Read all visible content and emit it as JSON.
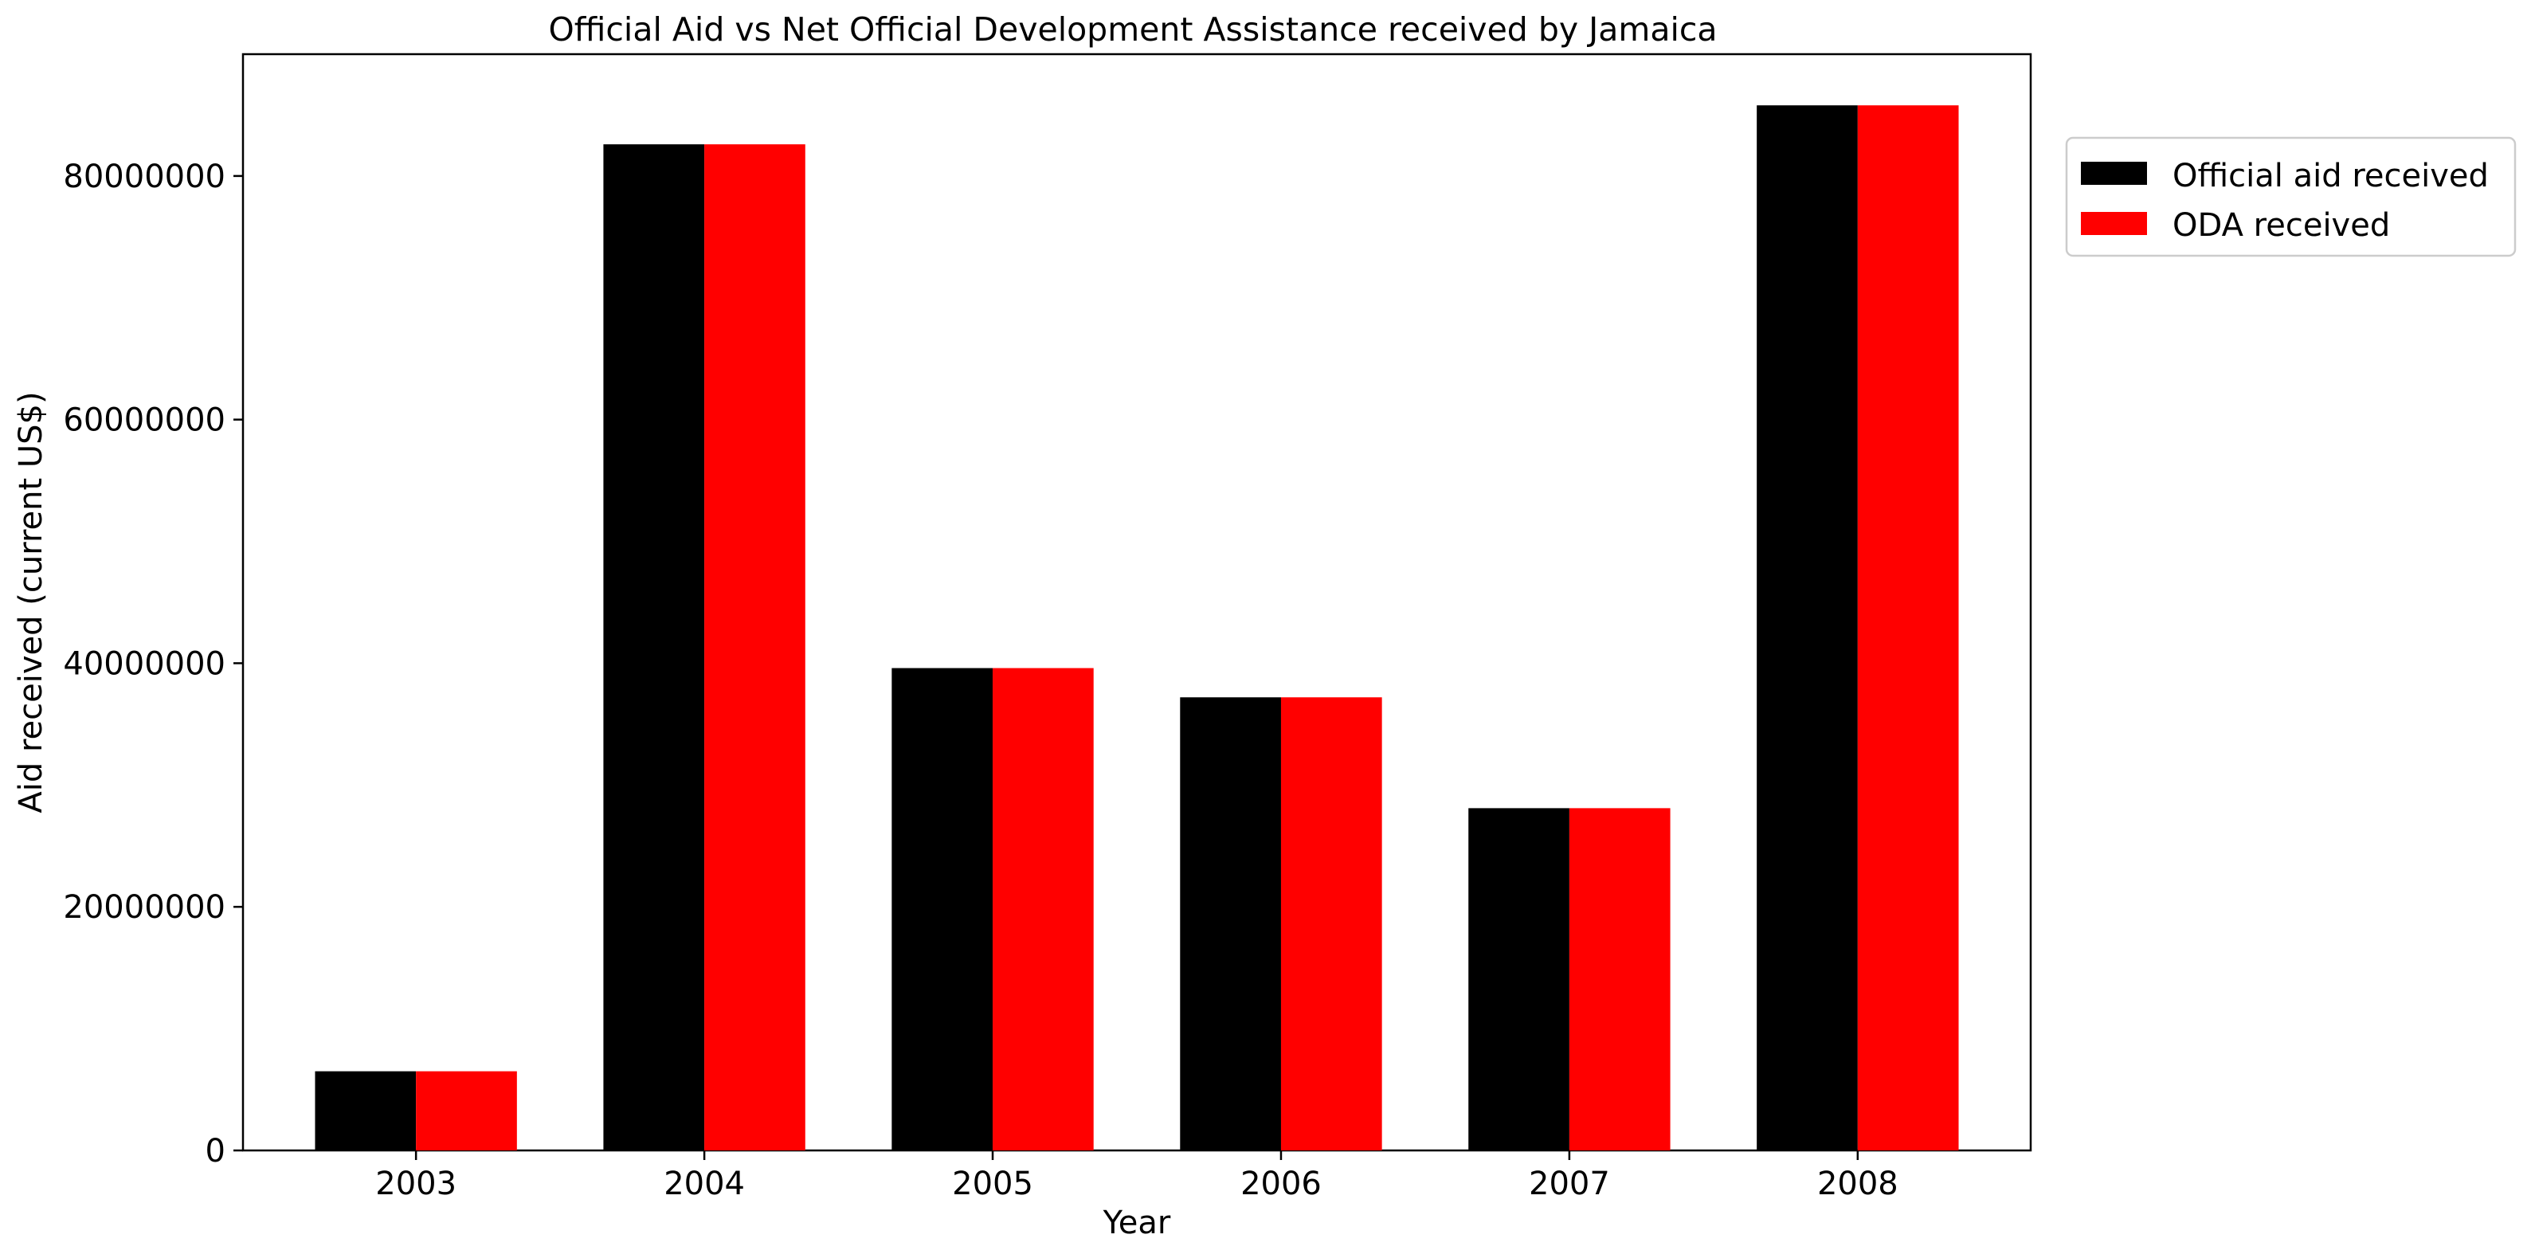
{
  "chart_data": {
    "type": "bar",
    "title": "Official Aid vs Net Official Development Assistance received by Jamaica",
    "xlabel": "Year",
    "ylabel": "Aid received (current US$)",
    "categories": [
      "2003",
      "2004",
      "2005",
      "2006",
      "2007",
      "2008"
    ],
    "series": [
      {
        "name": "Official aid received",
        "color": "#000000",
        "values": [
          6500000,
          82600000,
          39600000,
          37200000,
          28100000,
          85800000
        ]
      },
      {
        "name": "ODA received",
        "color": "#ff0000",
        "values": [
          6500000,
          82600000,
          39600000,
          37200000,
          28100000,
          85800000
        ]
      }
    ],
    "ylim": [
      0,
      90000000
    ],
    "yticks": [
      0,
      20000000,
      40000000,
      60000000,
      80000000
    ],
    "ytick_labels": [
      "0",
      "20000000",
      "40000000",
      "60000000",
      "80000000"
    ],
    "grid": false,
    "legend_position": "outside-top-right"
  }
}
